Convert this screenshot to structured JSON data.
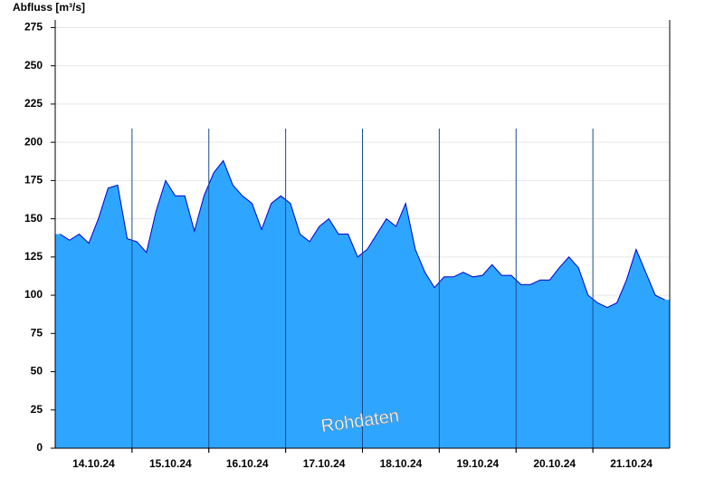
{
  "chart_data": {
    "type": "area",
    "title": "Abfluss [m³/s]",
    "annotation": "Rohdaten",
    "categories": [
      null,
      null,
      null,
      null,
      "14.10.24",
      null,
      null,
      null,
      null,
      null,
      null,
      null,
      "15.10.24",
      null,
      null,
      null,
      null,
      null,
      null,
      null,
      "16.10.24",
      null,
      null,
      null,
      null,
      null,
      null,
      null,
      "17.10.24",
      null,
      null,
      null,
      null,
      null,
      null,
      null,
      "18.10.24",
      null,
      null,
      null,
      null,
      null,
      null,
      null,
      "19.10.24",
      null,
      null,
      null,
      null,
      null,
      null,
      null,
      "20.10.24",
      null,
      null,
      null,
      null,
      null,
      null,
      null,
      "21.10.24",
      null,
      null,
      null
    ],
    "series": [
      {
        "name": "Abfluss",
        "color": "#2ea6ff",
        "line_color": "#0000cc",
        "values": [
          140,
          136,
          140,
          134,
          150,
          170,
          172,
          137,
          135,
          128,
          155,
          175,
          165,
          165,
          142,
          165,
          180,
          188,
          172,
          165,
          160,
          143,
          160,
          165,
          160,
          140,
          135,
          145,
          150,
          140,
          140,
          125,
          130,
          140,
          150,
          145,
          160,
          130,
          115,
          105,
          112,
          112,
          115,
          112,
          113,
          120,
          113,
          113,
          107,
          107,
          110,
          110,
          118,
          125,
          118,
          100,
          95,
          92,
          95,
          110,
          130,
          115,
          100,
          97
        ]
      }
    ],
    "ylim": [
      0,
      280
    ],
    "yticks": [
      0,
      25,
      50,
      75,
      100,
      125,
      150,
      175,
      200,
      225,
      250,
      275
    ],
    "grid": true
  }
}
